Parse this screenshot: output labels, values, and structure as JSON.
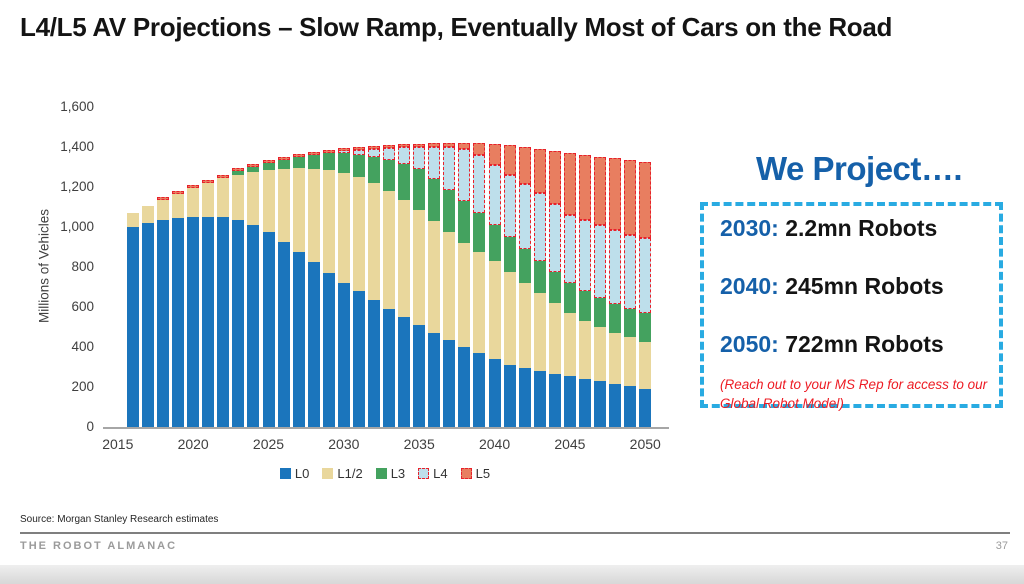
{
  "slide": {
    "title": "L4/L5 AV Projections – Slow Ramp, Eventually Most of Cars on the Road"
  },
  "chart_data": {
    "type": "bar",
    "stacked": true,
    "ylabel": "Millions of Vehicles",
    "ylim": [
      0,
      1600
    ],
    "y_tick_step": 200,
    "y_tick_labels": [
      "0",
      "200",
      "400",
      "600",
      "800",
      "1,000",
      "1,200",
      "1,400",
      "1,600"
    ],
    "x_axis_labels": [
      2015,
      2020,
      2025,
      2030,
      2035,
      2040,
      2045,
      2050
    ],
    "grid": false,
    "legend_position": "bottom",
    "dash_color": "#e8212b",
    "x": [
      2016,
      2017,
      2018,
      2019,
      2020,
      2021,
      2022,
      2023,
      2024,
      2025,
      2026,
      2027,
      2028,
      2029,
      2030,
      2031,
      2032,
      2033,
      2034,
      2035,
      2036,
      2037,
      2038,
      2039,
      2040,
      2041,
      2042,
      2043,
      2044,
      2045,
      2046,
      2047,
      2048,
      2049,
      2050
    ],
    "series": [
      {
        "name": "L0",
        "color": "#1b75bc",
        "dashed": false,
        "values": [
          1000,
          1020,
          1035,
          1046,
          1050,
          1052,
          1048,
          1036,
          1010,
          976,
          926,
          876,
          826,
          770,
          722,
          678,
          634,
          590,
          548,
          508,
          470,
          434,
          400,
          368,
          338,
          310,
          295,
          280,
          266,
          253,
          240,
          228,
          216,
          204,
          192
        ]
      },
      {
        "name": "L1/2",
        "color": "#e9d79c",
        "dashed": false,
        "values": [
          70,
          84,
          101,
          120,
          144,
          168,
          196,
          226,
          266,
          310,
          366,
          418,
          466,
          514,
          548,
          570,
          584,
          590,
          588,
          578,
          562,
          542,
          520,
          508,
          490,
          465,
          427,
          390,
          354,
          319,
          292,
          272,
          256,
          244,
          235
        ]
      },
      {
        "name": "L3",
        "color": "#44a25f",
        "dashed": false,
        "values": [
          0,
          0,
          0,
          0,
          0,
          0,
          0,
          18,
          24,
          32,
          42,
          54,
          68,
          84,
          100,
          114,
          132,
          154,
          178,
          204,
          208,
          209,
          208,
          192,
          180,
          173,
          166,
          160,
          155,
          150,
          148,
          145,
          143,
          142,
          143
        ]
      },
      {
        "name": "L4",
        "color": "#bedfeb",
        "dashed": true,
        "values": [
          0,
          0,
          0,
          0,
          0,
          0,
          0,
          0,
          0,
          0,
          0,
          0,
          0,
          4,
          10,
          24,
          42,
          62,
          86,
          112,
          162,
          213,
          262,
          292,
          302,
          314,
          327,
          340,
          340,
          338,
          355,
          365,
          370,
          372,
          373
        ]
      },
      {
        "name": "L5",
        "color": "#e87e60",
        "dashed": true,
        "values": [
          0,
          0,
          4,
          4,
          6,
          8,
          8,
          8,
          8,
          8,
          8,
          8,
          8,
          8,
          10,
          12,
          12,
          12,
          12,
          13,
          16,
          22,
          30,
          58,
          104,
          146,
          185,
          222,
          267,
          312,
          327,
          342,
          358,
          373,
          384
        ]
      }
    ]
  },
  "right_panel": {
    "heading": "We Project….",
    "rows": [
      {
        "year": "2030:",
        "value": "2.2mn Robots"
      },
      {
        "year": "2040:",
        "value": "245mn Robots"
      },
      {
        "year": "2050:",
        "value": "722mn Robots"
      }
    ],
    "note": "(Reach out to your MS Rep for access to our Global Robot Model)",
    "accent_blue": "#1560a9",
    "box_border_blue": "#29abe2",
    "note_red": "#ed1c24"
  },
  "footer": {
    "source": "Source: Morgan Stanley Research estimates",
    "brand": "THE ROBOT ALMANAC",
    "page_number": "37"
  }
}
